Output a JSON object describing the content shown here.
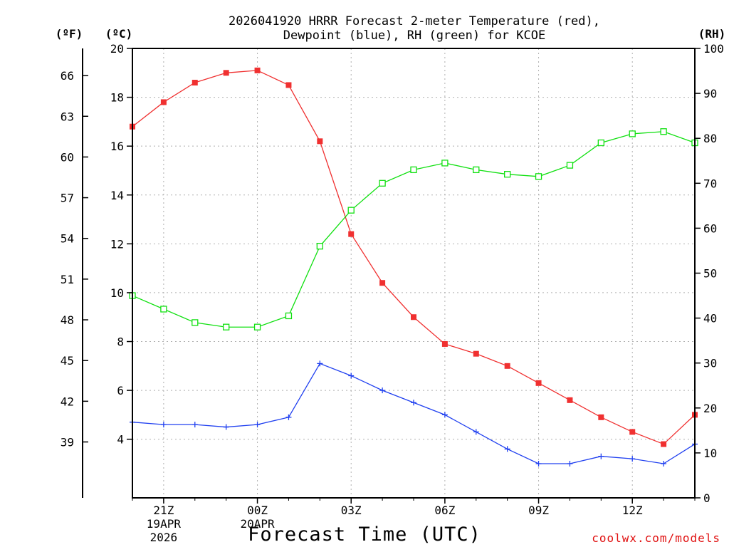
{
  "chart_data": {
    "type": "line",
    "title_lines": [
      "2026041920 HRRR Forecast 2-meter Temperature (red),",
      "Dewpoint (blue), RH (green) for KCOE"
    ],
    "xlabel": "Forecast Time (UTC)",
    "credit": "coolwx.com/models",
    "units": {
      "fahrenheit": "(ºF)",
      "celsius": "(ºC)",
      "rh": "(RH)"
    },
    "hours": [
      20,
      21,
      22,
      23,
      24,
      25,
      26,
      27,
      28,
      29,
      30,
      31,
      32,
      33,
      34,
      35,
      36,
      37,
      38
    ],
    "x_ticks": [
      {
        "hour": 21,
        "label": "21Z",
        "date": "19APR",
        "year": "2026"
      },
      {
        "hour": 24,
        "label": "00Z",
        "date": "20APR",
        "year": ""
      },
      {
        "hour": 27,
        "label": "03Z",
        "date": "",
        "year": ""
      },
      {
        "hour": 30,
        "label": "06Z",
        "date": "",
        "year": ""
      },
      {
        "hour": 33,
        "label": "09Z",
        "date": "",
        "year": ""
      },
      {
        "hour": 36,
        "label": "12Z",
        "date": "",
        "year": ""
      }
    ],
    "xlim": [
      20,
      38
    ],
    "celsius_axis": {
      "ylim": [
        1.6,
        20
      ],
      "ticks": [
        4,
        6,
        8,
        10,
        12,
        14,
        16,
        18,
        20
      ]
    },
    "fahrenheit_axis": {
      "ticks": [
        39,
        42,
        45,
        48,
        51,
        54,
        57,
        60,
        63,
        66
      ]
    },
    "rh_axis": {
      "ylim": [
        0,
        100
      ],
      "ticks": [
        0,
        10,
        20,
        30,
        40,
        50,
        60,
        70,
        80,
        90,
        100
      ]
    },
    "series": [
      {
        "name": "Temperature",
        "units": "C",
        "color": "#f03030",
        "marker": "filled-square",
        "values": [
          16.8,
          17.8,
          18.6,
          19.0,
          19.1,
          18.5,
          16.2,
          12.4,
          10.4,
          9.0,
          7.9,
          7.5,
          7.0,
          6.3,
          5.6,
          4.9,
          4.3,
          3.8,
          5.0
        ]
      },
      {
        "name": "Dewpoint",
        "units": "C",
        "color": "#2040f0",
        "marker": "plus",
        "values": [
          4.7,
          4.6,
          4.6,
          4.5,
          4.6,
          4.9,
          7.1,
          6.6,
          6.0,
          5.5,
          5.0,
          4.3,
          3.6,
          3.0,
          3.0,
          3.3,
          3.2,
          3.0,
          3.8
        ]
      },
      {
        "name": "RH",
        "units": "%",
        "color": "#10e010",
        "marker": "open-square",
        "values": [
          45,
          42,
          39,
          38,
          38,
          40.5,
          56,
          64,
          70,
          73,
          74.5,
          73,
          72,
          71.5,
          74,
          79,
          81,
          81.5,
          79
        ]
      }
    ]
  }
}
